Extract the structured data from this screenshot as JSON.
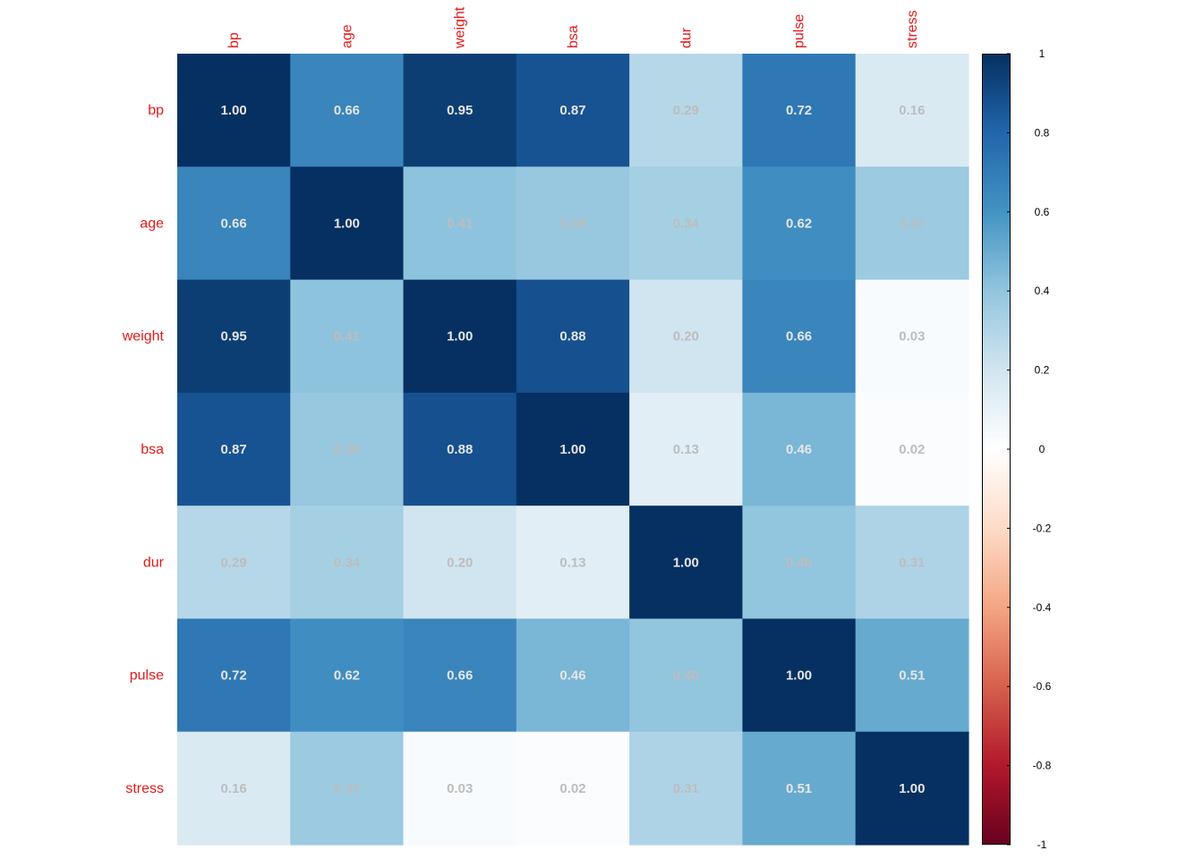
{
  "chart_data": {
    "type": "heatmap",
    "title": "",
    "xlabel": "",
    "ylabel": "",
    "variables": [
      "bp",
      "age",
      "weight",
      "bsa",
      "dur",
      "pulse",
      "stress"
    ],
    "values": [
      [
        1.0,
        0.66,
        0.95,
        0.87,
        0.29,
        0.72,
        0.16
      ],
      [
        0.66,
        1.0,
        0.41,
        0.38,
        0.34,
        0.62,
        0.37
      ],
      [
        0.95,
        0.41,
        1.0,
        0.88,
        0.2,
        0.66,
        0.03
      ],
      [
        0.87,
        0.38,
        0.88,
        1.0,
        0.13,
        0.46,
        0.02
      ],
      [
        0.29,
        0.34,
        0.2,
        0.13,
        1.0,
        0.4,
        0.31
      ],
      [
        0.72,
        0.62,
        0.66,
        0.46,
        0.4,
        1.0,
        0.51
      ],
      [
        0.16,
        0.37,
        0.03,
        0.02,
        0.31,
        0.51,
        1.0
      ]
    ],
    "value_labels": [
      [
        "1.00",
        "0.66",
        "0.95",
        "0.87",
        "0.29",
        "0.72",
        "0.16"
      ],
      [
        "0.66",
        "1.00",
        "0.41",
        "0.38",
        "0.34",
        "0.62",
        "0.37"
      ],
      [
        "0.95",
        "0.41",
        "1.00",
        "0.88",
        "0.20",
        "0.66",
        "0.03"
      ],
      [
        "0.87",
        "0.38",
        "0.88",
        "1.00",
        "0.13",
        "0.46",
        "0.02"
      ],
      [
        "0.29",
        "0.34",
        "0.20",
        "0.13",
        "1.00",
        "0.40",
        "0.31"
      ],
      [
        "0.72",
        "0.62",
        "0.66",
        "0.46",
        "0.40",
        "1.00",
        "0.51"
      ],
      [
        "0.16",
        "0.37",
        "0.03",
        "0.02",
        "0.31",
        "0.51",
        "1.00"
      ]
    ],
    "color_scale": {
      "range": [
        -1,
        1
      ],
      "ticks": [
        "1",
        "0.8",
        "0.6",
        "0.4",
        "0.2",
        "0",
        "-0.2",
        "-0.4",
        "-0.6",
        "-0.8",
        "-1"
      ],
      "palette": [
        "#67001F",
        "#B2182B",
        "#D6604D",
        "#F4A582",
        "#FDDBC7",
        "#FFFFFF",
        "#D1E5F0",
        "#92C5DE",
        "#4393C3",
        "#2166AC",
        "#053061"
      ]
    },
    "label_color": "#E41A1C",
    "value_text_color_dark": "#E6E6E6",
    "value_text_color_light": "#BDBDBD",
    "legend_position": "right",
    "grid": false
  }
}
